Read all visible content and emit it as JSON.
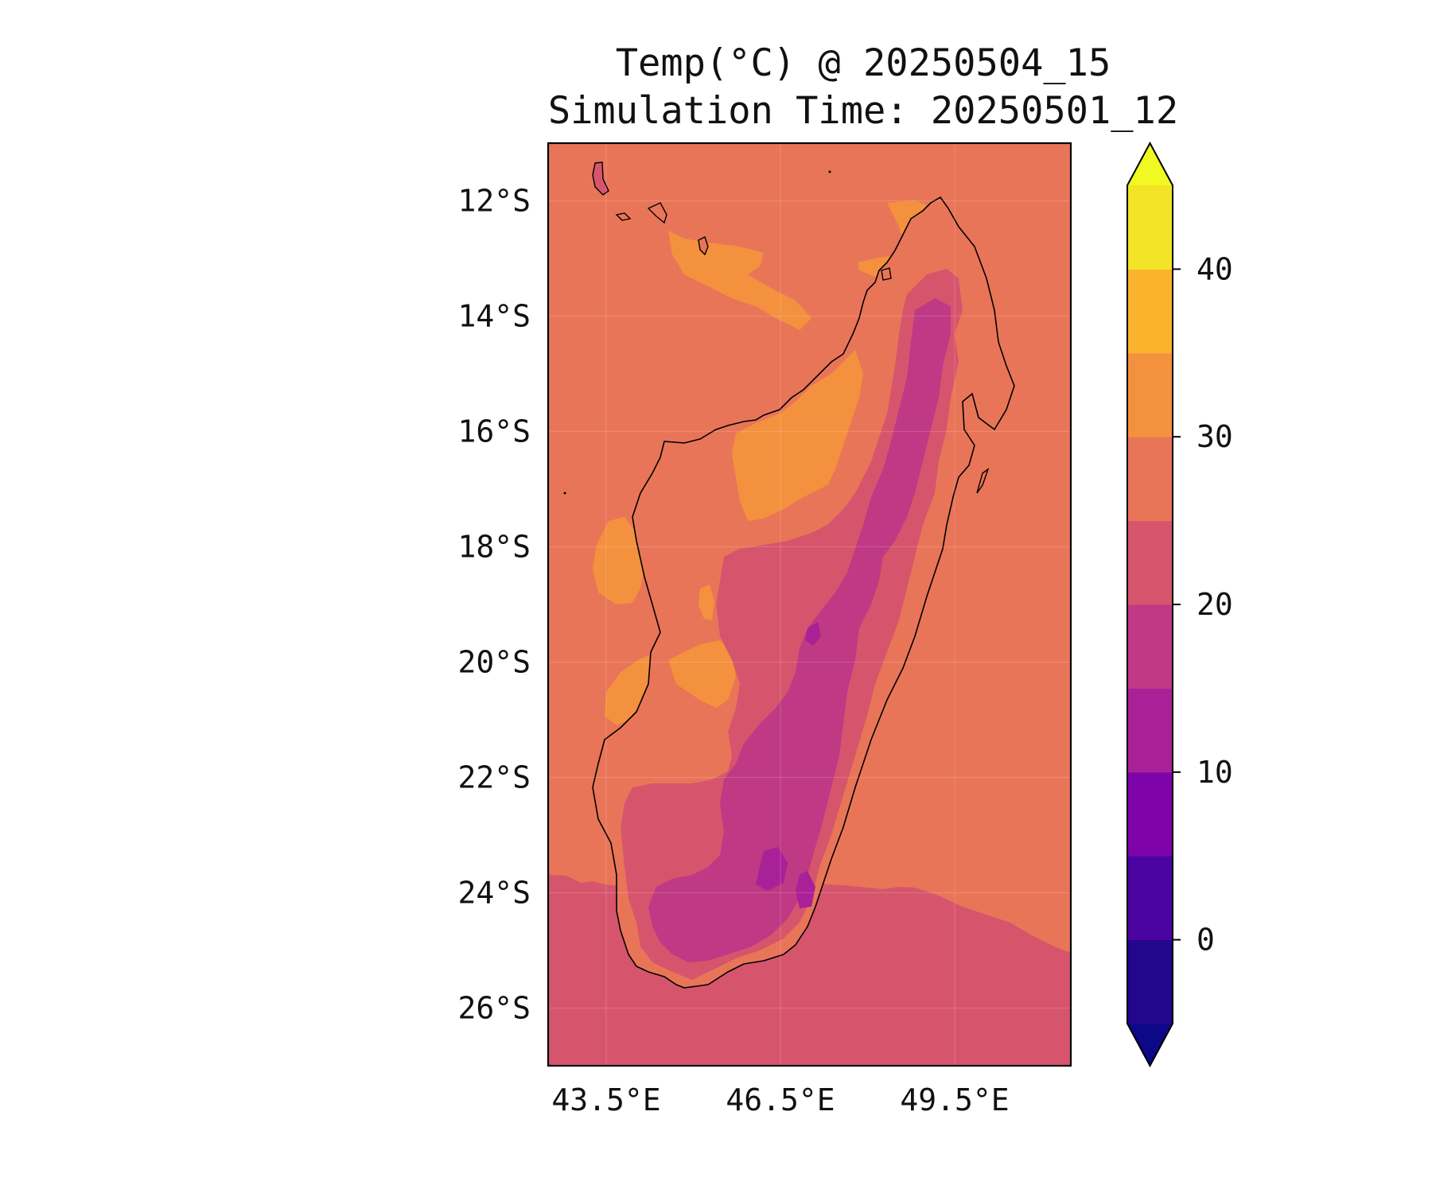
{
  "title": {
    "line1": "Temp(°C) @ 20250504_15",
    "line2": "Simulation Time: 20250501_12"
  },
  "map": {
    "lon_range": [
      42.5,
      51.5
    ],
    "lat_range": [
      -27.0,
      -11.0
    ],
    "lat_ticks": [
      {
        "value": -12,
        "label": "12°S"
      },
      {
        "value": -14,
        "label": "14°S"
      },
      {
        "value": -16,
        "label": "16°S"
      },
      {
        "value": -18,
        "label": "18°S"
      },
      {
        "value": -20,
        "label": "20°S"
      },
      {
        "value": -22,
        "label": "22°S"
      },
      {
        "value": -24,
        "label": "24°S"
      },
      {
        "value": -26,
        "label": "26°S"
      }
    ],
    "lon_ticks": [
      {
        "value": 43.5,
        "label": "43.5°E"
      },
      {
        "value": 46.5,
        "label": "46.5°E"
      },
      {
        "value": 49.5,
        "label": "49.5°E"
      }
    ],
    "gridlines": true,
    "colors": {
      "ocean_north": "#e97558",
      "ocean_south": "#d6556d",
      "warm": "#f4913e",
      "mild": "#e97558",
      "cool": "#d6556d",
      "cold": "#bf3984",
      "colder": "#a82197",
      "coast": "#000000"
    }
  },
  "colorbar": {
    "ticks": [
      {
        "value": 0,
        "label": "0"
      },
      {
        "value": 10,
        "label": "10"
      },
      {
        "value": 20,
        "label": "20"
      },
      {
        "value": 30,
        "label": "30"
      },
      {
        "value": 40,
        "label": "40"
      }
    ],
    "bands": [
      {
        "from": -5,
        "to": 0,
        "color": "#22068c"
      },
      {
        "from": 0,
        "to": 5,
        "color": "#4b03a1"
      },
      {
        "from": 5,
        "to": 10,
        "color": "#7e03a8"
      },
      {
        "from": 10,
        "to": 15,
        "color": "#a82197"
      },
      {
        "from": 15,
        "to": 20,
        "color": "#bf3984"
      },
      {
        "from": 20,
        "to": 25,
        "color": "#d6556d"
      },
      {
        "from": 25,
        "to": 30,
        "color": "#e97558"
      },
      {
        "from": 30,
        "to": 35,
        "color": "#f4913e"
      },
      {
        "from": 35,
        "to": 40,
        "color": "#fbb32e"
      },
      {
        "from": 40,
        "to": 45,
        "color": "#f3e427"
      }
    ],
    "under_color": "#0d0887",
    "over_color": "#f0f921",
    "extend": "both"
  }
}
